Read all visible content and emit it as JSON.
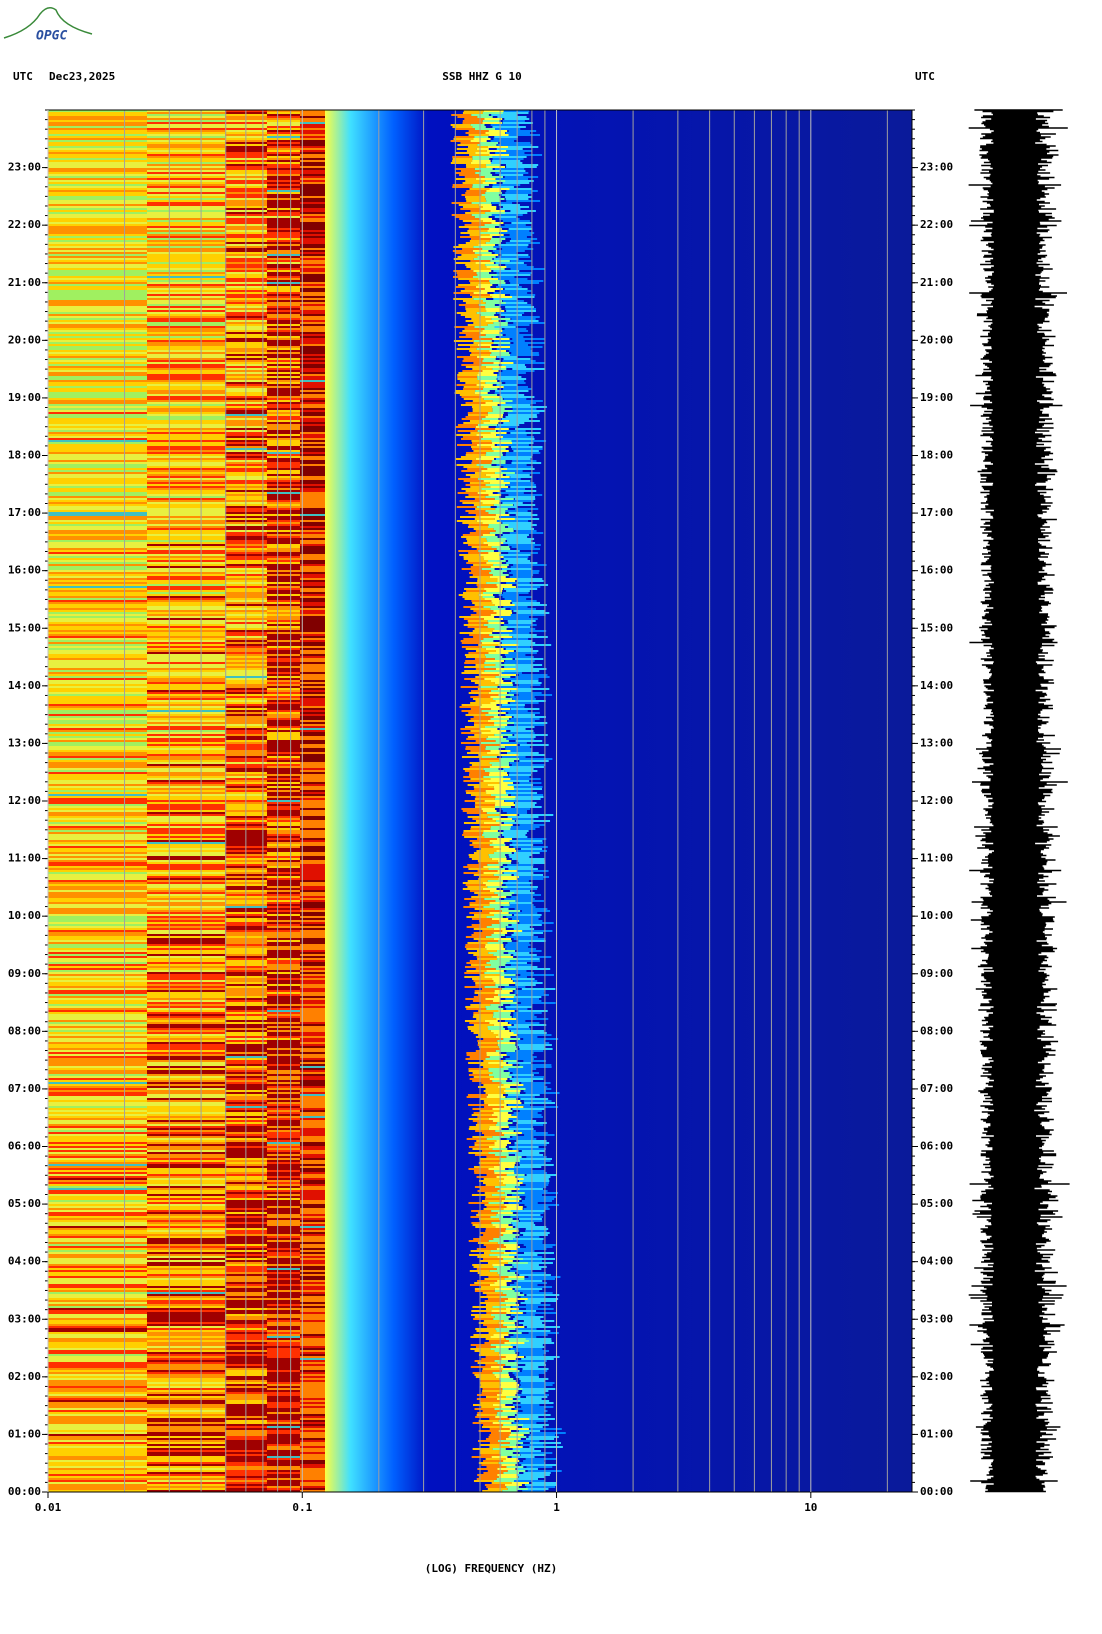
{
  "logo": "OPGC",
  "chart_data": {
    "type": "spectrogram",
    "header_left": "UTC",
    "date": "Dec23,2025",
    "title": "SSB HHZ G 10",
    "header_right": "UTC",
    "x_label": "(LOG) FREQUENCY (HZ)",
    "xscale": "log",
    "xlim": [
      0.01,
      25
    ],
    "xticks": [
      0.01,
      0.1,
      1,
      10
    ],
    "ylim": [
      0,
      24
    ],
    "yticks": [
      {
        "value": 0,
        "label": "00:00"
      },
      {
        "value": 1,
        "label": "01:00"
      },
      {
        "value": 2,
        "label": "02:00"
      },
      {
        "value": 3,
        "label": "03:00"
      },
      {
        "value": 4,
        "label": "04:00"
      },
      {
        "value": 5,
        "label": "05:00"
      },
      {
        "value": 6,
        "label": "06:00"
      },
      {
        "value": 7,
        "label": "07:00"
      },
      {
        "value": 8,
        "label": "08:00"
      },
      {
        "value": 9,
        "label": "09:00"
      },
      {
        "value": 10,
        "label": "10:00"
      },
      {
        "value": 11,
        "label": "11:00"
      },
      {
        "value": 12,
        "label": "12:00"
      },
      {
        "value": 13,
        "label": "13:00"
      },
      {
        "value": 14,
        "label": "14:00"
      },
      {
        "value": 15,
        "label": "15:00"
      },
      {
        "value": 16,
        "label": "16:00"
      },
      {
        "value": 17,
        "label": "17:00"
      },
      {
        "value": 18,
        "label": "18:00"
      },
      {
        "value": 19,
        "label": "19:00"
      },
      {
        "value": 20,
        "label": "20:00"
      },
      {
        "value": 21,
        "label": "21:00"
      },
      {
        "value": 22,
        "label": "22:00"
      },
      {
        "value": 23,
        "label": "23:00"
      }
    ],
    "grid": true
  }
}
